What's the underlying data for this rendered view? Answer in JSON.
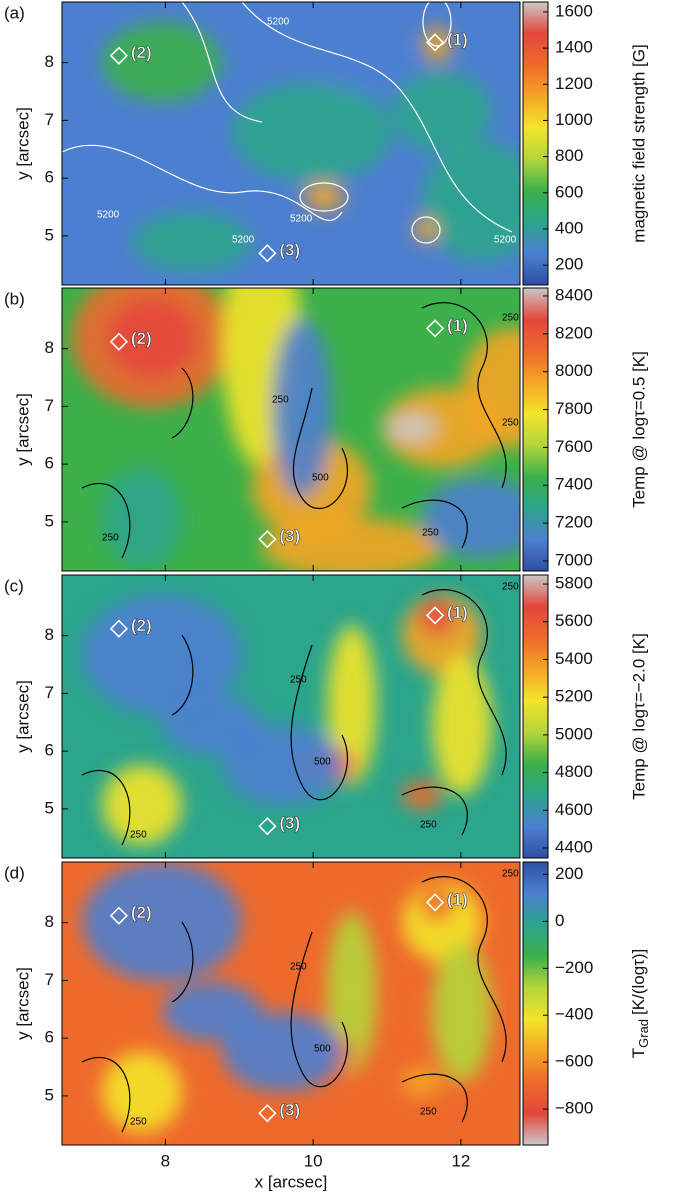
{
  "chart_data": [
    {
      "type": "heatmap",
      "panel": "(a)",
      "ylabel": "y [arcsec]",
      "xlim": [
        6.6,
        12.8
      ],
      "xticks": [
        8,
        10,
        12
      ],
      "ylim": [
        4.15,
        9.05
      ],
      "yticks": [
        5,
        6,
        7,
        8
      ],
      "cbar_label": "magnetic field strength [G]",
      "clim": [
        90,
        1655
      ],
      "cticks": [
        200,
        400,
        600,
        800,
        1000,
        1200,
        1400,
        1600
      ],
      "colors": [
        "#2c4fa3",
        "#4d7fd0",
        "#2ba58c",
        "#3cb04a",
        "#b5d53a",
        "#f4e42a",
        "#f5a524",
        "#ee6a2c",
        "#e5463c",
        "#c9c9c9"
      ],
      "contour_color": "#ffffff",
      "contour_labels": [
        "5200",
        "5200",
        "5200",
        "5200",
        "5200"
      ],
      "markers": [
        {
          "label": "(1)",
          "x": 11.65,
          "y": 8.35
        },
        {
          "label": "(2)",
          "x": 7.37,
          "y": 8.12
        },
        {
          "label": "(3)",
          "x": 9.38,
          "y": 4.7
        }
      ]
    },
    {
      "type": "heatmap",
      "panel": "(b)",
      "ylabel": "y [arcsec]",
      "xlim": [
        6.6,
        12.8
      ],
      "xticks": [
        8,
        10,
        12
      ],
      "ylim": [
        4.15,
        9.05
      ],
      "yticks": [
        5,
        6,
        7,
        8
      ],
      "cbar_label": "Temp @ logτ=0.5  [K]",
      "clim": [
        6947,
        8442
      ],
      "cticks": [
        7000,
        7200,
        7400,
        7600,
        7800,
        8000,
        8200,
        8400
      ],
      "colors": [
        "#2c4fa3",
        "#4d7fd0",
        "#2ba58c",
        "#3cb04a",
        "#b5d53a",
        "#f4e42a",
        "#f5a524",
        "#ee6a2c",
        "#e5463c",
        "#c9c9c9"
      ],
      "contour_color": "#000000",
      "contour_labels": [
        "250",
        "250",
        "250",
        "500",
        "250",
        "250"
      ],
      "markers": [
        {
          "label": "(1)",
          "x": 11.65,
          "y": 8.35
        },
        {
          "label": "(2)",
          "x": 7.37,
          "y": 8.12
        },
        {
          "label": "(3)",
          "x": 9.38,
          "y": 4.7
        }
      ]
    },
    {
      "type": "heatmap",
      "panel": "(c)",
      "ylabel": "y [arcsec]",
      "xlim": [
        6.6,
        12.8
      ],
      "xticks": [
        8,
        10,
        12
      ],
      "ylim": [
        4.15,
        9.05
      ],
      "yticks": [
        5,
        6,
        7,
        8
      ],
      "cbar_label": "Temp @ logτ=−2.0  [K]",
      "clim": [
        4347,
        5848
      ],
      "cticks": [
        4400,
        4600,
        4800,
        5000,
        5200,
        5400,
        5600,
        5800
      ],
      "colors": [
        "#2c4fa3",
        "#4d7fd0",
        "#2ba58c",
        "#3cb04a",
        "#b5d53a",
        "#f4e42a",
        "#f5a524",
        "#ee6a2c",
        "#e5463c",
        "#c9c9c9"
      ],
      "contour_color": "#000000",
      "contour_labels": [
        "250",
        "250",
        "500",
        "250",
        "250"
      ],
      "markers": [
        {
          "label": "(1)",
          "x": 11.65,
          "y": 8.35
        },
        {
          "label": "(2)",
          "x": 7.37,
          "y": 8.12
        },
        {
          "label": "(3)",
          "x": 9.38,
          "y": 4.7
        }
      ]
    },
    {
      "type": "heatmap",
      "panel": "(d)",
      "ylabel": "y [arcsec]",
      "xlabel": "x [arcsec]",
      "xlim": [
        6.6,
        12.8
      ],
      "xticks": [
        8,
        10,
        12
      ],
      "ylim": [
        4.15,
        9.05
      ],
      "yticks": [
        5,
        6,
        7,
        8
      ],
      "cbar_label": [
        "T",
        "Grad",
        "[K/(logτ)]"
      ],
      "clim": [
        -953,
        253
      ],
      "cticks": [
        {
          "value": -800,
          "label": "−800"
        },
        {
          "value": -600,
          "label": "−600"
        },
        {
          "value": -400,
          "label": "−400"
        },
        {
          "value": -200,
          "label": "−200"
        },
        0,
        200
      ],
      "colors": [
        "#c9c9c9",
        "#e5463c",
        "#ee6a2c",
        "#f5a524",
        "#f4e42a",
        "#b5d53a",
        "#3cb04a",
        "#2ba58c",
        "#4d7fd0",
        "#2c4fa3"
      ],
      "contour_color": "#000000",
      "contour_labels": [
        "250",
        "250",
        "500",
        "250",
        "250"
      ],
      "markers": [
        {
          "label": "(1)",
          "x": 11.65,
          "y": 8.35
        },
        {
          "label": "(2)",
          "x": 7.37,
          "y": 8.12
        },
        {
          "label": "(3)",
          "x": 9.38,
          "y": 4.7
        }
      ]
    }
  ]
}
